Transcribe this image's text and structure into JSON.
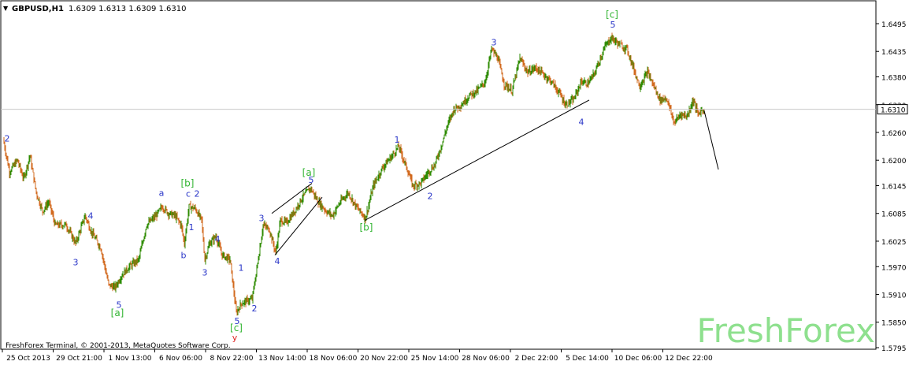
{
  "window": {
    "symbol": "GBPUSD,H1",
    "quote": "1.6309 1.6313 1.6309 1.6310",
    "footer": "FreshForex Terminal, © 2001-2013, MetaQuotes Software Corp.",
    "watermark": "FreshForex"
  },
  "colors": {
    "bull": "#2e8b00",
    "bear": "#d2691e",
    "wave_blue": "#2a36c8",
    "wave_green": "#33b533",
    "wave_red": "#e02020",
    "watermark": "#8ee08e",
    "axis_text": "#000000",
    "current_line": "#c8c8c8"
  },
  "chart_data": {
    "type": "candlestick",
    "price_axis": {
      "min": 1.5795,
      "max": 1.6495,
      "ticks": [
        "1.6495",
        "1.6435",
        "1.6380",
        "1.6320",
        "1.6260",
        "1.6200",
        "1.6145",
        "1.6085",
        "1.6025",
        "1.5970",
        "1.5910",
        "1.5850",
        "1.5795"
      ],
      "current_price": "1.6310"
    },
    "time_axis": {
      "ticks": [
        "25 Oct 2013",
        "29 Oct 21:00",
        "1 Nov 13:00",
        "6 Nov 06:00",
        "8 Nov 22:00",
        "13 Nov 14:00",
        "18 Nov 06:00",
        "20 Nov 22:00",
        "25 Nov 14:00",
        "28 Nov 06:00",
        "2 Dec 22:00",
        "5 Dec 14:00",
        "10 Dec 06:00",
        "12 Dec 22:00"
      ],
      "bars": 440
    },
    "path": [
      [
        0,
        1.6245
      ],
      [
        8,
        1.6175
      ],
      [
        18,
        1.62
      ],
      [
        26,
        1.616
      ],
      [
        34,
        1.621
      ],
      [
        42,
        1.613
      ],
      [
        50,
        1.609
      ],
      [
        58,
        1.611
      ],
      [
        66,
        1.606
      ],
      [
        80,
        1.606
      ],
      [
        92,
        1.602
      ],
      [
        104,
        1.608
      ],
      [
        112,
        1.6045
      ],
      [
        124,
        1.601
      ],
      [
        134,
        1.593
      ],
      [
        142,
        1.5925
      ],
      [
        150,
        1.595
      ],
      [
        160,
        1.597
      ],
      [
        172,
        1.5985
      ],
      [
        182,
        1.606
      ],
      [
        194,
        1.608
      ],
      [
        202,
        1.61
      ],
      [
        210,
        1.6085
      ],
      [
        218,
        1.608
      ],
      [
        226,
        1.606
      ],
      [
        230,
        1.602
      ],
      [
        236,
        1.61
      ],
      [
        244,
        1.6095
      ],
      [
        252,
        1.607
      ],
      [
        256,
        1.5985
      ],
      [
        262,
        1.602
      ],
      [
        270,
        1.6035
      ],
      [
        278,
        1.5995
      ],
      [
        288,
        1.5985
      ],
      [
        296,
        1.587
      ],
      [
        302,
        1.589
      ],
      [
        308,
        1.5895
      ],
      [
        316,
        1.59
      ],
      [
        322,
        1.5965
      ],
      [
        330,
        1.606
      ],
      [
        338,
        1.605
      ],
      [
        346,
        1.6
      ],
      [
        352,
        1.607
      ],
      [
        360,
        1.6065
      ],
      [
        370,
        1.609
      ],
      [
        380,
        1.612
      ],
      [
        390,
        1.614
      ],
      [
        400,
        1.611
      ],
      [
        410,
        1.609
      ],
      [
        418,
        1.608
      ],
      [
        428,
        1.611
      ],
      [
        438,
        1.613
      ],
      [
        448,
        1.61
      ],
      [
        460,
        1.6075
      ],
      [
        470,
        1.6145
      ],
      [
        482,
        1.6185
      ],
      [
        494,
        1.621
      ],
      [
        502,
        1.623
      ],
      [
        512,
        1.6185
      ],
      [
        520,
        1.6145
      ],
      [
        530,
        1.615
      ],
      [
        540,
        1.6175
      ],
      [
        548,
        1.619
      ],
      [
        556,
        1.623
      ],
      [
        564,
        1.6275
      ],
      [
        572,
        1.631
      ],
      [
        582,
        1.632
      ],
      [
        592,
        1.634
      ],
      [
        602,
        1.635
      ],
      [
        612,
        1.637
      ],
      [
        620,
        1.644
      ],
      [
        628,
        1.642
      ],
      [
        636,
        1.6365
      ],
      [
        646,
        1.635
      ],
      [
        656,
        1.642
      ],
      [
        666,
        1.639
      ],
      [
        676,
        1.64
      ],
      [
        686,
        1.6385
      ],
      [
        696,
        1.637
      ],
      [
        706,
        1.6345
      ],
      [
        714,
        1.632
      ],
      [
        724,
        1.633
      ],
      [
        734,
        1.637
      ],
      [
        742,
        1.6365
      ],
      [
        750,
        1.6385
      ],
      [
        758,
        1.642
      ],
      [
        764,
        1.6445
      ],
      [
        772,
        1.6465
      ],
      [
        782,
        1.645
      ],
      [
        792,
        1.644
      ],
      [
        800,
        1.64
      ],
      [
        808,
        1.636
      ],
      [
        818,
        1.639
      ],
      [
        826,
        1.636
      ],
      [
        834,
        1.633
      ],
      [
        842,
        1.6335
      ],
      [
        852,
        1.628
      ],
      [
        860,
        1.63
      ],
      [
        868,
        1.6295
      ],
      [
        876,
        1.633
      ],
      [
        882,
        1.63
      ],
      [
        889,
        1.631
      ]
    ],
    "wave_labels": [
      {
        "text": "2",
        "bar": 4,
        "price": 1.6247,
        "color": "blue"
      },
      {
        "text": "4",
        "bar": 110,
        "price": 1.608,
        "color": "blue"
      },
      {
        "text": "3",
        "bar": 91,
        "price": 1.598,
        "color": "blue"
      },
      {
        "text": "5",
        "bar": 146,
        "price": 1.5888,
        "color": "blue"
      },
      {
        "text": "[a]",
        "bar": 144,
        "price": 1.587,
        "color": "green"
      },
      {
        "text": "a",
        "bar": 200,
        "price": 1.613,
        "color": "blue"
      },
      {
        "text": "[b]",
        "bar": 233,
        "price": 1.615,
        "color": "green"
      },
      {
        "text": "c",
        "bar": 234,
        "price": 1.6128,
        "color": "blue"
      },
      {
        "text": "2",
        "bar": 245,
        "price": 1.6128,
        "color": "blue"
      },
      {
        "text": "1",
        "bar": 238,
        "price": 1.6056,
        "color": "blue"
      },
      {
        "text": "b",
        "bar": 228,
        "price": 1.5995,
        "color": "blue"
      },
      {
        "text": "4",
        "bar": 271,
        "price": 1.603,
        "color": "blue"
      },
      {
        "text": "3",
        "bar": 255,
        "price": 1.5958,
        "color": "blue"
      },
      {
        "text": "1",
        "bar": 301,
        "price": 1.5968,
        "color": "blue"
      },
      {
        "text": "2",
        "bar": 318,
        "price": 1.588,
        "color": "blue"
      },
      {
        "text": "5",
        "bar": 296,
        "price": 1.5853,
        "color": "blue"
      },
      {
        "text": "[c]",
        "bar": 295,
        "price": 1.5838,
        "color": "green"
      },
      {
        "text": "y",
        "bar": 293,
        "price": 1.5817,
        "color": "red"
      },
      {
        "text": "3",
        "bar": 327,
        "price": 1.6075,
        "color": "blue"
      },
      {
        "text": "4",
        "bar": 347,
        "price": 1.5982,
        "color": "blue"
      },
      {
        "text": "[a]",
        "bar": 387,
        "price": 1.6173,
        "color": "green"
      },
      {
        "text": "5",
        "bar": 390,
        "price": 1.6158,
        "color": "blue"
      },
      {
        "text": "[b]",
        "bar": 460,
        "price": 1.6055,
        "color": "green"
      },
      {
        "text": "1",
        "bar": 499,
        "price": 1.6245,
        "color": "blue"
      },
      {
        "text": "2",
        "bar": 541,
        "price": 1.6123,
        "color": "blue"
      },
      {
        "text": "3",
        "bar": 622,
        "price": 1.6455,
        "color": "blue"
      },
      {
        "text": "4",
        "bar": 733,
        "price": 1.6283,
        "color": "blue"
      },
      {
        "text": "[c]",
        "bar": 772,
        "price": 1.6515,
        "color": "green"
      },
      {
        "text": "5",
        "bar": 773,
        "price": 1.6493,
        "color": "blue"
      }
    ],
    "trend_lines": [
      {
        "from": [
          340,
          1.6085
        ],
        "to": [
          391,
          1.615
        ]
      },
      {
        "from": [
          344,
          1.5995
        ],
        "to": [
          404,
          1.612
        ]
      },
      {
        "from": [
          458,
          1.607
        ],
        "to": [
          743,
          1.633
        ]
      },
      {
        "from": [
          889,
          1.6307
        ],
        "to": [
          907,
          1.618
        ]
      }
    ]
  }
}
